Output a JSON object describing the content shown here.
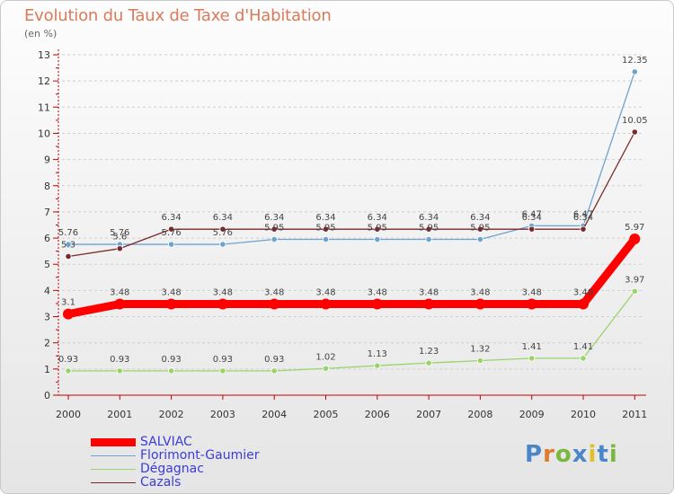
{
  "header": {
    "title": "Evolution du Taux de Taxe d'Habitation",
    "subtitle": "(en %)"
  },
  "logo": {
    "letters": [
      "P",
      "r",
      "o",
      "x",
      "i",
      "t",
      "i"
    ],
    "colors": [
      "#4a86c8",
      "#e07a2c",
      "#7ab840",
      "#4a86c8",
      "#e0c12c",
      "#4a86c8",
      "#7ab840"
    ]
  },
  "chart_data": {
    "type": "line",
    "title": "Evolution du Taux de Taxe d'Habitation",
    "ylabel": "(en %)",
    "xlabel": "",
    "x": [
      "2000",
      "2001",
      "2002",
      "2003",
      "2004",
      "2005",
      "2006",
      "2007",
      "2008",
      "2009",
      "2010",
      "2011"
    ],
    "ylim": [
      0,
      13
    ],
    "yticks": [
      "0",
      "1",
      "2",
      "3",
      "4",
      "5",
      "6",
      "7",
      "8",
      "9",
      "10",
      "11",
      "12",
      "13"
    ],
    "grid": "horizontal dashed",
    "legend_position": "bottom-left",
    "series": [
      {
        "name": "SALVIAC",
        "color": "#ff0000",
        "values": [
          3.1,
          3.48,
          3.48,
          3.48,
          3.48,
          3.48,
          3.48,
          3.48,
          3.48,
          3.48,
          3.48,
          5.97
        ],
        "labels": [
          "3.1",
          "3.48",
          "3.48",
          "3.48",
          "3.48",
          "3.48",
          "3.48",
          "3.48",
          "3.48",
          "3.48",
          "3.48",
          "5.97"
        ]
      },
      {
        "name": "Florimont-Gaumier",
        "color": "#6ea2cf",
        "values": [
          5.76,
          5.76,
          5.76,
          5.76,
          5.95,
          5.95,
          5.95,
          5.95,
          5.95,
          6.47,
          6.47,
          12.35
        ],
        "labels": [
          "5.76",
          "5.76",
          "5.76",
          "5.76",
          "5.95",
          "5.95",
          "5.95",
          "5.95",
          "5.95",
          "6.47",
          "6.47",
          "12.35"
        ]
      },
      {
        "name": "Dégagnac",
        "color": "#99d46b",
        "values": [
          0.93,
          0.93,
          0.93,
          0.93,
          0.93,
          1.02,
          1.13,
          1.23,
          1.32,
          1.41,
          1.41,
          3.97
        ],
        "labels": [
          "0.93",
          "0.93",
          "0.93",
          "0.93",
          "0.93",
          "1.02",
          "1.13",
          "1.23",
          "1.32",
          "1.41",
          "1.41",
          "3.97"
        ]
      },
      {
        "name": "Cazals",
        "color": "#7a2a2a",
        "values": [
          5.3,
          5.6,
          6.34,
          6.34,
          6.34,
          6.34,
          6.34,
          6.34,
          6.34,
          6.34,
          6.34,
          10.05
        ],
        "labels": [
          "5.3",
          "5.6",
          "6.34",
          "6.34",
          "6.34",
          "6.34",
          "6.34",
          "6.34",
          "6.34",
          "6.34",
          "6.34",
          "10.05"
        ]
      }
    ]
  }
}
